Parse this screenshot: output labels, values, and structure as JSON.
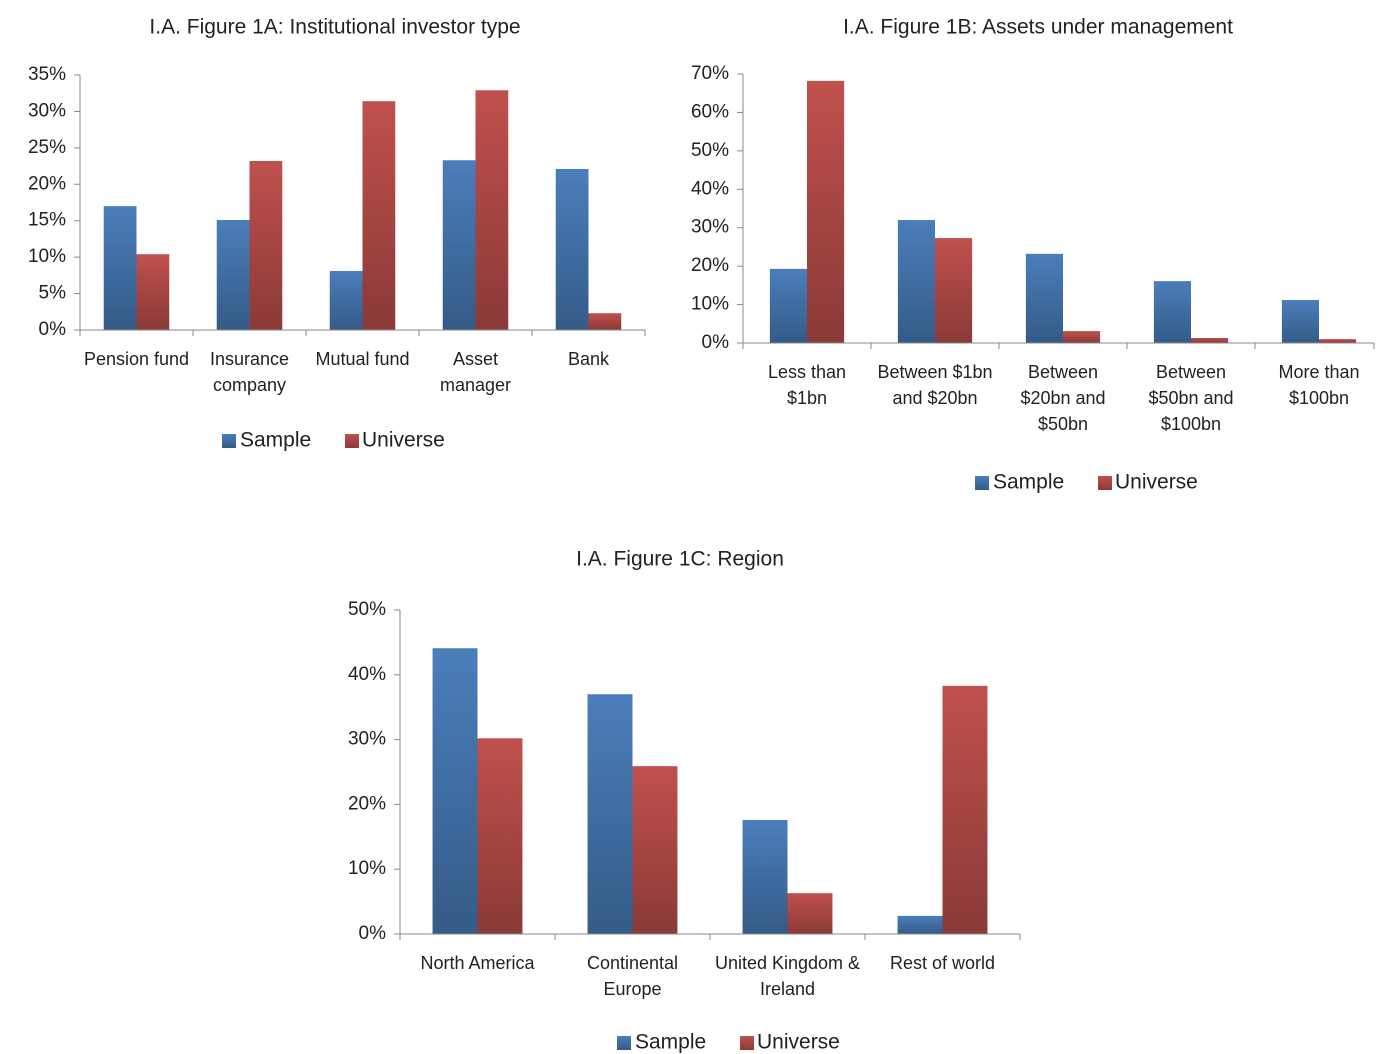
{
  "chart_data": [
    {
      "type": "bar",
      "title": "I.A. Figure 1A: Institutional investor type",
      "categories": [
        "Pension fund",
        "Insurance company",
        "Mutual fund",
        "Asset manager",
        "Bank"
      ],
      "series": [
        {
          "name": "Sample",
          "color": "#4a7ebb",
          "values": [
            17.0,
            15.1,
            8.1,
            23.3,
            22.1
          ]
        },
        {
          "name": "Universe",
          "color": "#c0504d",
          "values": [
            10.4,
            23.2,
            31.4,
            32.9,
            2.3
          ]
        }
      ],
      "ylim": [
        0,
        35
      ],
      "yticks": [
        {
          "value": 0,
          "label": "0%"
        },
        {
          "value": 5,
          "label": "5%"
        },
        {
          "value": 10,
          "label": "10%"
        },
        {
          "value": 15,
          "label": "15%"
        },
        {
          "value": 20,
          "label": "20%"
        },
        {
          "value": 25,
          "label": "25%"
        },
        {
          "value": 30,
          "label": "30%"
        },
        {
          "value": 35,
          "label": "35%"
        }
      ]
    },
    {
      "type": "bar",
      "title": "I.A. Figure 1B: Assets under management",
      "categories": [
        "Less than $1bn",
        "Between $1bn and $20bn",
        "Between $20bn and $50bn",
        "Between $50bn and $100bn",
        "More than $100bn"
      ],
      "series": [
        {
          "name": "Sample",
          "color": "#4a7ebb",
          "values": [
            19.3,
            32.0,
            23.2,
            16.1,
            11.2
          ]
        },
        {
          "name": "Universe",
          "color": "#c0504d",
          "values": [
            68.2,
            27.3,
            3.1,
            1.3,
            1.0
          ]
        }
      ],
      "ylim": [
        0,
        70
      ],
      "yticks": [
        {
          "value": 0,
          "label": "0%"
        },
        {
          "value": 10,
          "label": "10%"
        },
        {
          "value": 20,
          "label": "20%"
        },
        {
          "value": 30,
          "label": "30%"
        },
        {
          "value": 40,
          "label": "40%"
        },
        {
          "value": 50,
          "label": "50%"
        },
        {
          "value": 60,
          "label": "60%"
        },
        {
          "value": 70,
          "label": "70%"
        }
      ]
    },
    {
      "type": "bar",
      "title": "I.A. Figure 1C: Region",
      "categories": [
        "North America",
        "Continental Europe",
        "United Kingdom & Ireland",
        "Rest of world"
      ],
      "series": [
        {
          "name": "Sample",
          "color": "#4a7ebb",
          "values": [
            44.1,
            37.0,
            17.6,
            2.8
          ]
        },
        {
          "name": "Universe",
          "color": "#c0504d",
          "values": [
            30.2,
            25.9,
            6.3,
            38.3
          ]
        }
      ],
      "ylim": [
        0,
        50
      ],
      "yticks": [
        {
          "value": 0,
          "label": "0%"
        },
        {
          "value": 10,
          "label": "10%"
        },
        {
          "value": 20,
          "label": "20%"
        },
        {
          "value": 30,
          "label": "30%"
        },
        {
          "value": 40,
          "label": "40%"
        },
        {
          "value": 50,
          "label": "50%"
        }
      ]
    }
  ]
}
